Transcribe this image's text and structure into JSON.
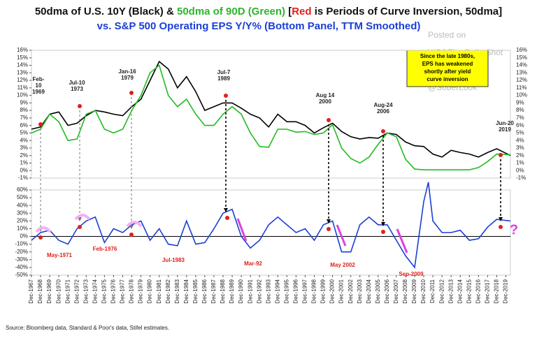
{
  "title_parts": [
    "50dma of U.S. 10Y (Black) & ",
    "50dma of 90D (Green)",
    " [",
    "Red",
    " is Periods of Curve Inversion, 50dma]"
  ],
  "subtitle": "vs. S&P 500 Operating EPS Y/Y% (Bottom Panel, TTM Smoothed)",
  "callout": [
    "Since the late 1980s,",
    "EPS has weakened",
    "shortly after yield",
    "curve inversion"
  ],
  "watermark": [
    "Posted on",
    "WSJ The Daily Shot",
    "@SoberLook"
  ],
  "source": "Source: Bloomberg data, Standard & Poor's data, Stifel estimates.",
  "chart_data": [
    {
      "type": "line",
      "x": [
        1967,
        1968,
        1969,
        1970,
        1971,
        1972,
        1973,
        1974,
        1975,
        1976,
        1977,
        1978,
        1979,
        1980,
        1981,
        1982,
        1983,
        1984,
        1985,
        1986,
        1987,
        1988,
        1989,
        1990,
        1991,
        1992,
        1993,
        1994,
        1995,
        1996,
        1997,
        1998,
        1999,
        2000,
        2001,
        2002,
        2003,
        2004,
        2005,
        2006,
        2007,
        2008,
        2009,
        2010,
        2011,
        2012,
        2013,
        2014,
        2015,
        2016,
        2017,
        2018,
        2019.5
      ],
      "series": [
        {
          "name": "U.S. 10Y",
          "color": "#000000",
          "values": [
            5.5,
            5.8,
            7.5,
            7.8,
            6.0,
            6.3,
            7.3,
            8.0,
            7.8,
            7.5,
            7.3,
            8.5,
            9.5,
            12,
            14.5,
            13.5,
            11,
            12.5,
            10.5,
            8,
            8.5,
            9,
            9,
            8.3,
            7.5,
            7,
            5.8,
            7.5,
            6.5,
            6.5,
            6.0,
            5.0,
            5.7,
            6.3,
            5.2,
            4.5,
            4.2,
            4.4,
            4.3,
            5.0,
            4.8,
            3.8,
            3.3,
            3.2,
            2.2,
            1.8,
            2.7,
            2.4,
            2.2,
            1.8,
            2.4,
            2.9,
            2.0
          ]
        },
        {
          "name": "90D",
          "color": "#22bb22",
          "values": [
            5,
            5.5,
            7.5,
            6.5,
            4,
            4.2,
            7.5,
            8,
            5.5,
            5,
            5.5,
            8,
            10,
            13,
            14,
            10,
            8.5,
            9.5,
            7.5,
            6,
            6,
            7.5,
            8.5,
            7.5,
            5,
            3.2,
            3.1,
            5.5,
            5.5,
            5.1,
            5.2,
            4.8,
            5,
            6.1,
            3,
            1.6,
            1,
            1.8,
            3.5,
            5,
            4.5,
            1.5,
            0.2,
            0.1,
            0.1,
            0.1,
            0.1,
            0.1,
            0.1,
            0.4,
            1.2,
            2.2,
            2.1
          ]
        }
      ],
      "xlim": [
        1967,
        2019.5
      ],
      "ylim": [
        -1,
        16
      ],
      "yticks": [
        {
          "value": -1,
          "label": "-1%"
        },
        {
          "value": 0,
          "label": "0%"
        },
        {
          "value": 1,
          "label": "1%"
        },
        {
          "value": 2,
          "label": "2%"
        },
        {
          "value": 3,
          "label": "3%"
        },
        {
          "value": 4,
          "label": "4%"
        },
        {
          "value": 5,
          "label": "5%"
        },
        {
          "value": 6,
          "label": "6%"
        },
        {
          "value": 7,
          "label": "7%"
        },
        {
          "value": 8,
          "label": "8%"
        },
        {
          "value": 9,
          "label": "9%"
        },
        {
          "value": 10,
          "label": "10%"
        },
        {
          "value": 11,
          "label": "11%"
        },
        {
          "value": 12,
          "label": "12%"
        },
        {
          "value": 13,
          "label": "13%"
        },
        {
          "value": 14,
          "label": "14%"
        },
        {
          "value": 15,
          "label": "15%"
        },
        {
          "value": 16,
          "label": "16%"
        }
      ],
      "annotations": [
        [
          "Feb-",
          "10",
          "1969"
        ],
        [
          "Jul-10",
          "1973"
        ],
        [
          "Jan-16",
          "1979"
        ],
        [
          "Jul-7",
          "1989"
        ],
        [
          "Aug 14",
          "2000"
        ],
        [
          "Aug-24",
          "2006"
        ],
        [
          "Jun-20",
          "2019"
        ]
      ]
    },
    {
      "type": "line",
      "x": [
        1967,
        1968,
        1969,
        1970,
        1971,
        1972,
        1973,
        1974,
        1975,
        1976,
        1977,
        1978,
        1979,
        1980,
        1981,
        1982,
        1983,
        1984,
        1985,
        1986,
        1987,
        1988,
        1989,
        1990,
        1991,
        1992,
        1993,
        1994,
        1995,
        1996,
        1997,
        1998,
        1999,
        2000,
        2001,
        2002,
        2003,
        2004,
        2005,
        2006,
        2007,
        2008,
        2009,
        2010,
        2010.5,
        2011,
        2012,
        2013,
        2014,
        2015,
        2016,
        2017,
        2018,
        2019.5
      ],
      "series": [
        {
          "name": "S&P 500 Operating EPS Y/Y%",
          "color": "#1a3fd6",
          "values": [
            -5,
            5,
            8,
            -5,
            -10,
            10,
            20,
            25,
            -8,
            10,
            5,
            15,
            20,
            -5,
            10,
            -10,
            -12,
            20,
            -10,
            -8,
            10,
            30,
            35,
            0,
            -15,
            -5,
            15,
            25,
            15,
            5,
            10,
            -5,
            15,
            20,
            -20,
            -20,
            15,
            25,
            15,
            15,
            -5,
            -25,
            -40,
            45,
            70,
            20,
            5,
            5,
            8,
            -5,
            -3,
            12,
            22,
            20
          ]
        }
      ],
      "xlim": [
        1967,
        2019.5
      ],
      "ylim": [
        -50,
        60
      ],
      "yticks": [
        {
          "value": -50,
          "label": "-50%"
        },
        {
          "value": -40,
          "label": "-40%"
        },
        {
          "value": -30,
          "label": "-30%"
        },
        {
          "value": -20,
          "label": "-20%"
        },
        {
          "value": -10,
          "label": "-10%"
        },
        {
          "value": 0,
          "label": "0%"
        },
        {
          "value": 10,
          "label": "10%"
        },
        {
          "value": 20,
          "label": "20%"
        },
        {
          "value": 30,
          "label": "30%"
        },
        {
          "value": 40,
          "label": "40%"
        },
        {
          "value": 50,
          "label": "50%"
        },
        {
          "value": 60,
          "label": "60%"
        }
      ],
      "xticks": [
        {
          "value": 1967,
          "label": "Dec-1967"
        },
        {
          "value": 1968,
          "label": "Dec-1968"
        },
        {
          "value": 1969,
          "label": "Dec-1969"
        },
        {
          "value": 1970,
          "label": "Dec-1970"
        },
        {
          "value": 1971,
          "label": "Dec-1971"
        },
        {
          "value": 1972,
          "label": "Dec-1972"
        },
        {
          "value": 1973,
          "label": "Dec-1973"
        },
        {
          "value": 1974,
          "label": "Dec-1974"
        },
        {
          "value": 1975,
          "label": "Dec-1975"
        },
        {
          "value": 1976,
          "label": "Dec-1976"
        },
        {
          "value": 1977,
          "label": "Dec-1977"
        },
        {
          "value": 1978,
          "label": "Dec-1978"
        },
        {
          "value": 1979,
          "label": "Dec-1979"
        },
        {
          "value": 1980,
          "label": "Dec-1980"
        },
        {
          "value": 1981,
          "label": "Dec-1981"
        },
        {
          "value": 1982,
          "label": "Dec-1982"
        },
        {
          "value": 1983,
          "label": "Dec-1983"
        },
        {
          "value": 1984,
          "label": "Dec-1984"
        },
        {
          "value": 1985,
          "label": "Dec-1985"
        },
        {
          "value": 1986,
          "label": "Dec-1986"
        },
        {
          "value": 1987,
          "label": "Dec-1987"
        },
        {
          "value": 1988,
          "label": "Dec-1988"
        },
        {
          "value": 1989,
          "label": "Dec-1989"
        },
        {
          "value": 1990,
          "label": "Dec-1990"
        },
        {
          "value": 1991,
          "label": "Dec-1991"
        },
        {
          "value": 1992,
          "label": "Dec-1992"
        },
        {
          "value": 1993,
          "label": "Dec-1993"
        },
        {
          "value": 1994,
          "label": "Dec-1994"
        },
        {
          "value": 1995,
          "label": "Dec-1995"
        },
        {
          "value": 1996,
          "label": "Dec-1996"
        },
        {
          "value": 1997,
          "label": "Dec-1997"
        },
        {
          "value": 1998,
          "label": "Dec-1998"
        },
        {
          "value": 1999,
          "label": "Dec-1999"
        },
        {
          "value": 2000,
          "label": "Dec-2000"
        },
        {
          "value": 2001,
          "label": "Dec-2001"
        },
        {
          "value": 2002,
          "label": "Dec-2002"
        },
        {
          "value": 2003,
          "label": "Dec-2003"
        },
        {
          "value": 2004,
          "label": "Dec-2004"
        },
        {
          "value": 2005,
          "label": "Dec-2005"
        },
        {
          "value": 2006,
          "label": "Dec-2006"
        },
        {
          "value": 2007,
          "label": "Dec-2007"
        },
        {
          "value": 2008,
          "label": "Dec-2008"
        },
        {
          "value": 2009,
          "label": "Dec-2009"
        },
        {
          "value": 2010,
          "label": "Dec-2010"
        },
        {
          "value": 2011,
          "label": "Dec-2011"
        },
        {
          "value": 2012,
          "label": "Dec-2012"
        },
        {
          "value": 2013,
          "label": "Dec-2013"
        },
        {
          "value": 2014,
          "label": "Dec-2014"
        },
        {
          "value": 2015,
          "label": "Dec-2015"
        },
        {
          "value": 2016,
          "label": "Dec-2016"
        },
        {
          "value": 2017,
          "label": "Dec-2017"
        },
        {
          "value": 2018,
          "label": "Dec-2018"
        },
        {
          "value": 2019,
          "label": "Dec-2019"
        }
      ],
      "annotations": [
        "May-1971",
        "Feb-1976",
        "Jul-1983",
        "Mar-92",
        "May 2002",
        "Sep-2009",
        "?"
      ]
    }
  ]
}
